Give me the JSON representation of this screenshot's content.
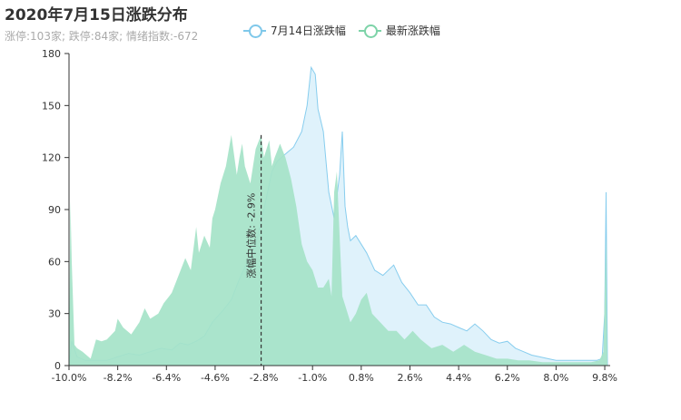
{
  "header": {
    "title": "2020年7月15日涨跌分布",
    "subtitle": "涨停:103家; 跌停:84家; 情绪指数:-672"
  },
  "legend": [
    {
      "label": "7月14日涨跌幅",
      "color": "#7fc8ea"
    },
    {
      "label": "最新涨跌幅",
      "color": "#7dd3a8"
    }
  ],
  "colors": {
    "series1_fill": "#dff2fb",
    "series1_line": "#87cdee",
    "series2_fill": "#a5e3c8",
    "series2_fill_opacity": 0.92,
    "median_line": "#333333"
  },
  "chart_data": {
    "type": "area",
    "title": "2020年7月15日涨跌分布",
    "xlim": [
      -10.0,
      10.0
    ],
    "ylim": [
      0,
      180
    ],
    "x_ticks": [
      -10.0,
      -8.2,
      -6.4,
      -4.6,
      -2.8,
      -1.0,
      0.8,
      2.6,
      4.4,
      6.2,
      8.0,
      9.8
    ],
    "x_tick_labels": [
      "-10.0%",
      "-8.2%",
      "-6.4%",
      "-4.6%",
      "-2.8%",
      "-1.0%",
      "0.8%",
      "2.6%",
      "4.4%",
      "6.2%",
      "8.0%",
      "9.8%"
    ],
    "y_ticks": [
      0,
      30,
      60,
      90,
      120,
      150,
      180
    ],
    "grid": false,
    "legend_position": "top-center",
    "median": {
      "x": -2.9,
      "label": "涨幅中位数: -2.9%"
    },
    "series": [
      {
        "name": "7月14日涨跌幅",
        "x": [
          -10.0,
          -9.9,
          -9.7,
          -9.4,
          -9.0,
          -8.6,
          -8.2,
          -7.8,
          -7.4,
          -7.0,
          -6.6,
          -6.2,
          -5.9,
          -5.6,
          -5.3,
          -5.0,
          -4.7,
          -4.3,
          -4.0,
          -3.7,
          -3.4,
          -3.1,
          -2.8,
          -2.5,
          -2.3,
          -2.0,
          -1.7,
          -1.4,
          -1.2,
          -1.05,
          -0.9,
          -0.8,
          -0.6,
          -0.4,
          -0.2,
          0.0,
          0.1,
          0.2,
          0.3,
          0.4,
          0.6,
          0.8,
          1.0,
          1.3,
          1.6,
          2.0,
          2.3,
          2.6,
          2.9,
          3.2,
          3.5,
          3.8,
          4.1,
          4.4,
          4.7,
          5.0,
          5.3,
          5.6,
          5.9,
          6.2,
          6.5,
          6.8,
          7.1,
          7.4,
          7.7,
          8.0,
          8.3,
          8.6,
          8.9,
          9.2,
          9.5,
          9.7,
          9.8,
          9.85,
          9.9
        ],
        "y": [
          0,
          14,
          5,
          3,
          3,
          3,
          5,
          7,
          6,
          8,
          10,
          9,
          13,
          12,
          14,
          17,
          25,
          32,
          38,
          50,
          60,
          70,
          90,
          112,
          118,
          122,
          126,
          135,
          150,
          172,
          168,
          148,
          135,
          100,
          85,
          110,
          135,
          92,
          80,
          72,
          75,
          70,
          65,
          55,
          52,
          58,
          48,
          42,
          35,
          35,
          28,
          25,
          24,
          22,
          20,
          24,
          20,
          15,
          13,
          14,
          10,
          8,
          6,
          5,
          4,
          3,
          3,
          3,
          3,
          3,
          3,
          4,
          30,
          100,
          0
        ]
      },
      {
        "name": "最新涨跌幅",
        "x": [
          -10.0,
          -9.95,
          -9.9,
          -9.8,
          -9.7,
          -9.5,
          -9.2,
          -9.0,
          -8.8,
          -8.6,
          -8.3,
          -8.2,
          -8.0,
          -7.7,
          -7.4,
          -7.2,
          -7.0,
          -6.7,
          -6.5,
          -6.3,
          -6.2,
          -6.0,
          -5.7,
          -5.5,
          -5.3,
          -5.2,
          -5.0,
          -4.8,
          -4.7,
          -4.6,
          -4.4,
          -4.2,
          -4.0,
          -3.8,
          -3.7,
          -3.6,
          -3.5,
          -3.3,
          -3.1,
          -2.9,
          -2.8,
          -2.6,
          -2.5,
          -2.4,
          -2.2,
          -2.0,
          -1.8,
          -1.6,
          -1.4,
          -1.2,
          -1.0,
          -0.8,
          -0.6,
          -0.4,
          -0.3,
          -0.2,
          -0.1,
          0.0,
          0.1,
          0.2,
          0.4,
          0.6,
          0.8,
          1.0,
          1.2,
          1.5,
          1.8,
          2.1,
          2.4,
          2.7,
          3.0,
          3.4,
          3.8,
          4.2,
          4.6,
          5.0,
          5.4,
          5.8,
          6.2,
          6.6,
          7.0,
          7.5,
          8.0,
          8.5,
          9.0,
          9.3,
          9.6,
          9.75,
          9.8,
          9.85,
          9.9
        ],
        "y": [
          0,
          95,
          60,
          12,
          10,
          8,
          4,
          15,
          14,
          15,
          20,
          27,
          22,
          18,
          25,
          33,
          27,
          30,
          36,
          40,
          42,
          50,
          62,
          55,
          80,
          65,
          75,
          68,
          85,
          90,
          105,
          115,
          133,
          110,
          120,
          128,
          115,
          105,
          125,
          133,
          120,
          130,
          115,
          120,
          128,
          120,
          108,
          92,
          70,
          60,
          55,
          45,
          45,
          50,
          40,
          100,
          112,
          75,
          40,
          35,
          25,
          30,
          38,
          42,
          30,
          25,
          20,
          20,
          15,
          20,
          15,
          10,
          12,
          8,
          12,
          8,
          6,
          4,
          4,
          3,
          3,
          2,
          2,
          2,
          2,
          2,
          3,
          8,
          40,
          75,
          0
        ]
      }
    ]
  }
}
